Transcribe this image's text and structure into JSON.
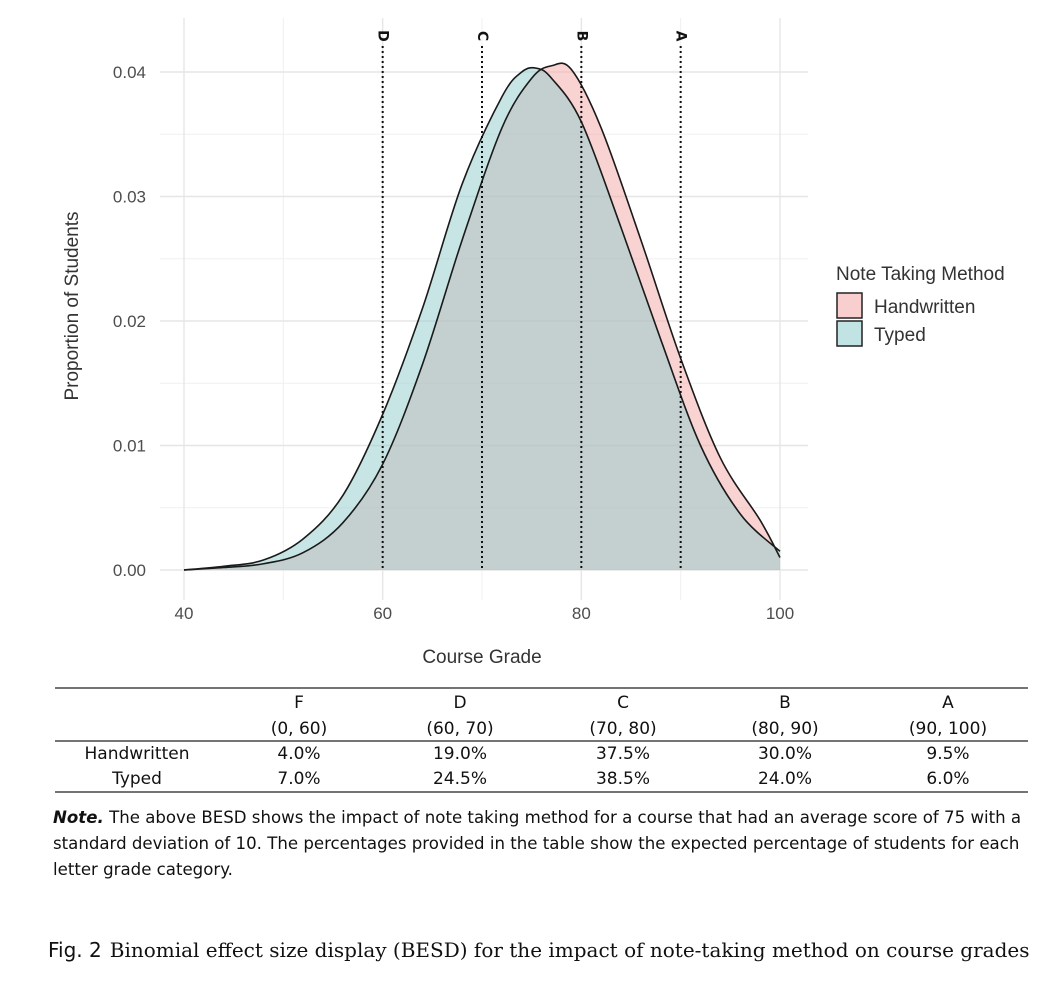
{
  "chart_data": {
    "type": "area",
    "xlabel": "Course Grade",
    "ylabel": "Proportion of Students",
    "xlim": [
      40,
      100
    ],
    "ylim": [
      0,
      0.04
    ],
    "x_ticks": [
      "40",
      "60",
      "80",
      "100"
    ],
    "y_ticks": [
      "0.00",
      "0.01",
      "0.02",
      "0.03",
      "0.04"
    ],
    "grid": true,
    "legend": {
      "title": "Note Taking Method",
      "placement": "right"
    },
    "grade_lines": [
      {
        "label": "D",
        "x": 60
      },
      {
        "label": "C",
        "x": 70
      },
      {
        "label": "B",
        "x": 80
      },
      {
        "label": "A",
        "x": 90
      }
    ],
    "series": [
      {
        "name": "Handwritten",
        "color": "#f4a6a6",
        "x": [
          40,
          44,
          48,
          52,
          56,
          60,
          64,
          68,
          72,
          75,
          77,
          79,
          82,
          86,
          90,
          94,
          98,
          100
        ],
        "y": [
          0.0,
          0.0002,
          0.0005,
          0.0014,
          0.0038,
          0.0085,
          0.0165,
          0.0265,
          0.0355,
          0.0395,
          0.0405,
          0.0402,
          0.0355,
          0.0265,
          0.017,
          0.009,
          0.004,
          0.001
        ]
      },
      {
        "name": "Typed",
        "color": "#8fcccc",
        "x": [
          40,
          44,
          48,
          52,
          56,
          60,
          64,
          68,
          72,
          74,
          75.5,
          77,
          80,
          84,
          88,
          92,
          96,
          100
        ],
        "y": [
          0.0,
          0.0003,
          0.0008,
          0.0025,
          0.006,
          0.0125,
          0.021,
          0.031,
          0.038,
          0.04,
          0.0403,
          0.0395,
          0.036,
          0.0275,
          0.0185,
          0.01,
          0.0045,
          0.0015
        ]
      }
    ]
  },
  "table": {
    "columns": [
      {
        "grade": "F",
        "range": "(0, 60)"
      },
      {
        "grade": "D",
        "range": "(60, 70)"
      },
      {
        "grade": "C",
        "range": "(70, 80)"
      },
      {
        "grade": "B",
        "range": "(80, 90)"
      },
      {
        "grade": "A",
        "range": "(90, 100)"
      }
    ],
    "rows": [
      {
        "label": "Handwritten",
        "values": [
          "4.0%",
          "19.0%",
          "37.5%",
          "30.0%",
          "9.5%"
        ]
      },
      {
        "label": "Typed",
        "values": [
          "7.0%",
          "24.5%",
          "38.5%",
          "24.0%",
          "6.0%"
        ]
      }
    ]
  },
  "note": {
    "label": "Note.",
    "text": "The above BESD shows the impact of note taking method for a course that had an average score of 75 with a standard deviation of 10.  The percentages provided in the table show the expected percentage of students for each letter grade category."
  },
  "caption": {
    "label": "Fig. 2",
    "text": "Binomial effect size display (BESD) for the impact of note-taking method on course grades"
  }
}
